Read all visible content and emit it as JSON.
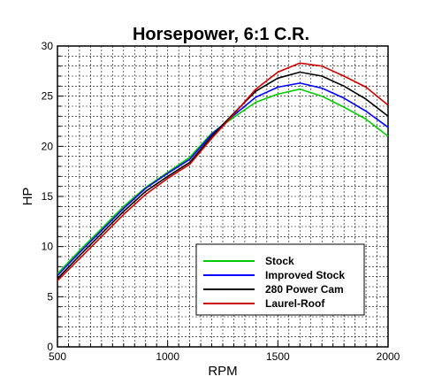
{
  "chart_data": {
    "type": "line",
    "title": "Horsepower, 6:1 C.R.",
    "xlabel": "RPM",
    "ylabel": "HP",
    "xlim": [
      500,
      2000
    ],
    "ylim": [
      0,
      30
    ],
    "grid": true,
    "legend_position": "bottom-right",
    "x_ticks": [
      500,
      1000,
      1500,
      2000
    ],
    "y_ticks": [
      0,
      5,
      10,
      15,
      20,
      25,
      30
    ],
    "x": [
      500,
      600,
      700,
      800,
      900,
      1000,
      1100,
      1200,
      1300,
      1400,
      1500,
      1600,
      1700,
      1800,
      1900,
      2000
    ],
    "series": [
      {
        "name": "Stock",
        "color": "#00cc00",
        "values": [
          7.3,
          9.6,
          11.8,
          14.0,
          15.9,
          17.4,
          18.9,
          21.3,
          22.9,
          24.4,
          25.2,
          25.7,
          25.0,
          23.9,
          22.7,
          21.0
        ]
      },
      {
        "name": "Improved Stock",
        "color": "#0000ff",
        "values": [
          7.1,
          9.4,
          11.6,
          13.8,
          15.8,
          17.3,
          18.7,
          21.2,
          23.1,
          24.9,
          25.9,
          26.3,
          25.8,
          24.8,
          23.5,
          21.9
        ]
      },
      {
        "name": "280 Power Cam",
        "color": "#000000",
        "values": [
          6.8,
          9.1,
          11.3,
          13.5,
          15.5,
          17.0,
          18.4,
          21.0,
          23.3,
          25.5,
          26.8,
          27.4,
          27.0,
          26.0,
          24.7,
          23.0
        ]
      },
      {
        "name": "Laurel-Roof",
        "color": "#cc0000",
        "values": [
          6.6,
          8.8,
          11.0,
          13.2,
          15.2,
          16.8,
          18.2,
          20.8,
          23.2,
          25.7,
          27.4,
          28.3,
          28.0,
          27.0,
          25.9,
          24.1
        ]
      }
    ]
  }
}
